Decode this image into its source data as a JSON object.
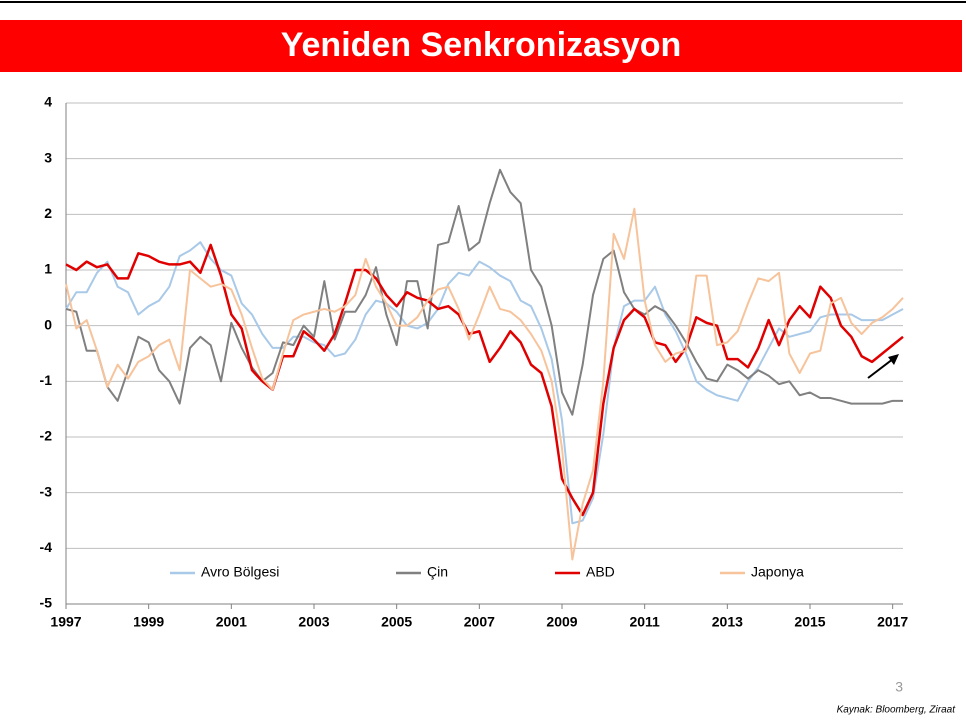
{
  "chart_data": {
    "type": "line",
    "title": "Yeniden Senkronizasyon",
    "x": [
      1997,
      1997.25,
      1997.5,
      1997.75,
      1998,
      1998.25,
      1998.5,
      1998.75,
      1999,
      1999.25,
      1999.5,
      1999.75,
      2000,
      2000.25,
      2000.5,
      2000.75,
      2001,
      2001.25,
      2001.5,
      2001.75,
      2002,
      2002.25,
      2002.5,
      2002.75,
      2003,
      2003.25,
      2003.5,
      2003.75,
      2004,
      2004.25,
      2004.5,
      2004.75,
      2005,
      2005.25,
      2005.5,
      2005.75,
      2006,
      2006.25,
      2006.5,
      2006.75,
      2007,
      2007.25,
      2007.5,
      2007.75,
      2008,
      2008.25,
      2008.5,
      2008.75,
      2009,
      2009.25,
      2009.5,
      2009.75,
      2010,
      2010.25,
      2010.5,
      2010.75,
      2011,
      2011.25,
      2011.5,
      2011.75,
      2012,
      2012.25,
      2012.5,
      2012.75,
      2013,
      2013.25,
      2013.5,
      2013.75,
      2014,
      2014.25,
      2014.5,
      2014.75,
      2015,
      2015.25,
      2015.5,
      2015.75,
      2016,
      2016.25,
      2016.5,
      2016.75,
      2017,
      2017.25
    ],
    "series": [
      {
        "name": "Avro Bölgesi",
        "color": "#a9c9e8",
        "values": [
          0.3,
          0.6,
          0.6,
          0.95,
          1.15,
          0.7,
          0.6,
          0.2,
          0.35,
          0.45,
          0.7,
          1.25,
          1.35,
          1.5,
          1.2,
          1.0,
          0.9,
          0.4,
          0.2,
          -0.15,
          -0.4,
          -0.4,
          -0.2,
          -0.2,
          -0.3,
          -0.35,
          -0.55,
          -0.5,
          -0.25,
          0.2,
          0.45,
          0.4,
          0.25,
          0.0,
          -0.05,
          0.05,
          0.3,
          0.75,
          0.95,
          0.9,
          1.15,
          1.05,
          0.9,
          0.8,
          0.45,
          0.35,
          -0.05,
          -0.6,
          -1.7,
          -3.55,
          -3.5,
          -3.1,
          -1.95,
          -0.4,
          0.35,
          0.45,
          0.45,
          0.7,
          0.2,
          -0.1,
          -0.5,
          -1.0,
          -1.15,
          -1.25,
          -1.3,
          -1.35,
          -1.0,
          -0.75,
          -0.4,
          -0.05,
          -0.2,
          -0.15,
          -0.1,
          0.15,
          0.2,
          0.2,
          0.2,
          0.1,
          0.1,
          0.1,
          0.2,
          0.3
        ]
      },
      {
        "name": "Çin",
        "color": "#808080",
        "values": [
          0.3,
          0.25,
          -0.45,
          -0.45,
          -1.1,
          -1.35,
          -0.8,
          -0.2,
          -0.3,
          -0.8,
          -1.0,
          -1.4,
          -0.4,
          -0.2,
          -0.35,
          -1.0,
          0.05,
          -0.4,
          -0.75,
          -1.0,
          -0.85,
          -0.3,
          -0.35,
          0.0,
          -0.2,
          0.8,
          -0.25,
          0.25,
          0.25,
          0.55,
          1.05,
          0.2,
          -0.35,
          0.8,
          0.8,
          -0.05,
          1.45,
          1.5,
          2.15,
          1.35,
          1.5,
          2.2,
          2.8,
          2.4,
          2.2,
          1.0,
          0.7,
          0.0,
          -1.2,
          -1.6,
          -0.7,
          0.55,
          1.2,
          1.35,
          0.6,
          0.3,
          0.2,
          0.35,
          0.25,
          0.0,
          -0.3,
          -0.65,
          -0.95,
          -1.0,
          -0.7,
          -0.8,
          -0.95,
          -0.8,
          -0.9,
          -1.05,
          -1.0,
          -1.25,
          -1.2,
          -1.3,
          -1.3,
          -1.35,
          -1.4,
          -1.4,
          -1.4,
          -1.4,
          -1.35,
          -1.35
        ]
      },
      {
        "name": "ABD",
        "color": "#e00000",
        "values": [
          1.1,
          1.0,
          1.15,
          1.05,
          1.1,
          0.85,
          0.85,
          1.3,
          1.25,
          1.15,
          1.1,
          1.1,
          1.15,
          0.95,
          1.45,
          0.9,
          0.2,
          -0.05,
          -0.8,
          -1.0,
          -1.15,
          -0.55,
          -0.55,
          -0.1,
          -0.25,
          -0.45,
          -0.15,
          0.4,
          1.0,
          1.0,
          0.85,
          0.55,
          0.35,
          0.6,
          0.5,
          0.45,
          0.3,
          0.35,
          0.2,
          -0.15,
          -0.1,
          -0.65,
          -0.4,
          -0.1,
          -0.3,
          -0.7,
          -0.85,
          -1.45,
          -2.75,
          -3.1,
          -3.4,
          -3.0,
          -1.4,
          -0.4,
          0.1,
          0.3,
          0.15,
          -0.3,
          -0.35,
          -0.65,
          -0.4,
          0.15,
          0.05,
          0.0,
          -0.6,
          -0.6,
          -0.75,
          -0.4,
          0.1,
          -0.35,
          0.1,
          0.35,
          0.15,
          0.7,
          0.5,
          0.0,
          -0.2,
          -0.55,
          -0.65,
          -0.5,
          -0.35,
          -0.2
        ]
      },
      {
        "name": "Japonya",
        "color": "#f7c39b",
        "values": [
          0.75,
          -0.05,
          0.1,
          -0.45,
          -1.1,
          -0.7,
          -0.95,
          -0.65,
          -0.55,
          -0.35,
          -0.25,
          -0.8,
          1.0,
          0.85,
          0.7,
          0.75,
          0.65,
          0.2,
          -0.4,
          -0.95,
          -1.15,
          -0.5,
          0.1,
          0.2,
          0.25,
          0.3,
          0.25,
          0.35,
          0.55,
          1.2,
          0.7,
          0.4,
          0.0,
          0.0,
          0.15,
          0.45,
          0.65,
          0.7,
          0.3,
          -0.25,
          0.2,
          0.7,
          0.3,
          0.25,
          0.1,
          -0.15,
          -0.45,
          -1.0,
          -2.2,
          -4.2,
          -3.2,
          -2.6,
          -1.0,
          1.65,
          1.2,
          2.1,
          0.45,
          -0.35,
          -0.65,
          -0.5,
          -0.45,
          0.9,
          0.9,
          -0.35,
          -0.3,
          -0.1,
          0.4,
          0.85,
          0.8,
          0.95,
          -0.5,
          -0.85,
          -0.5,
          -0.45,
          0.4,
          0.5,
          0.05,
          -0.15,
          0.05,
          0.15,
          0.3,
          0.5
        ]
      }
    ],
    "xlim": [
      1997,
      2017.25
    ],
    "xticks": [
      1997,
      1999,
      2001,
      2003,
      2005,
      2007,
      2009,
      2011,
      2013,
      2015,
      2017
    ],
    "ylim": [
      -5,
      4
    ],
    "yticks": [
      -5,
      -4,
      -3,
      -2,
      -1,
      0,
      1,
      2,
      3,
      4
    ],
    "grid": true,
    "legend": "bottom"
  },
  "slide": {
    "page_number": "3",
    "source": "Kaynak: Bloomberg, Ziraat"
  }
}
